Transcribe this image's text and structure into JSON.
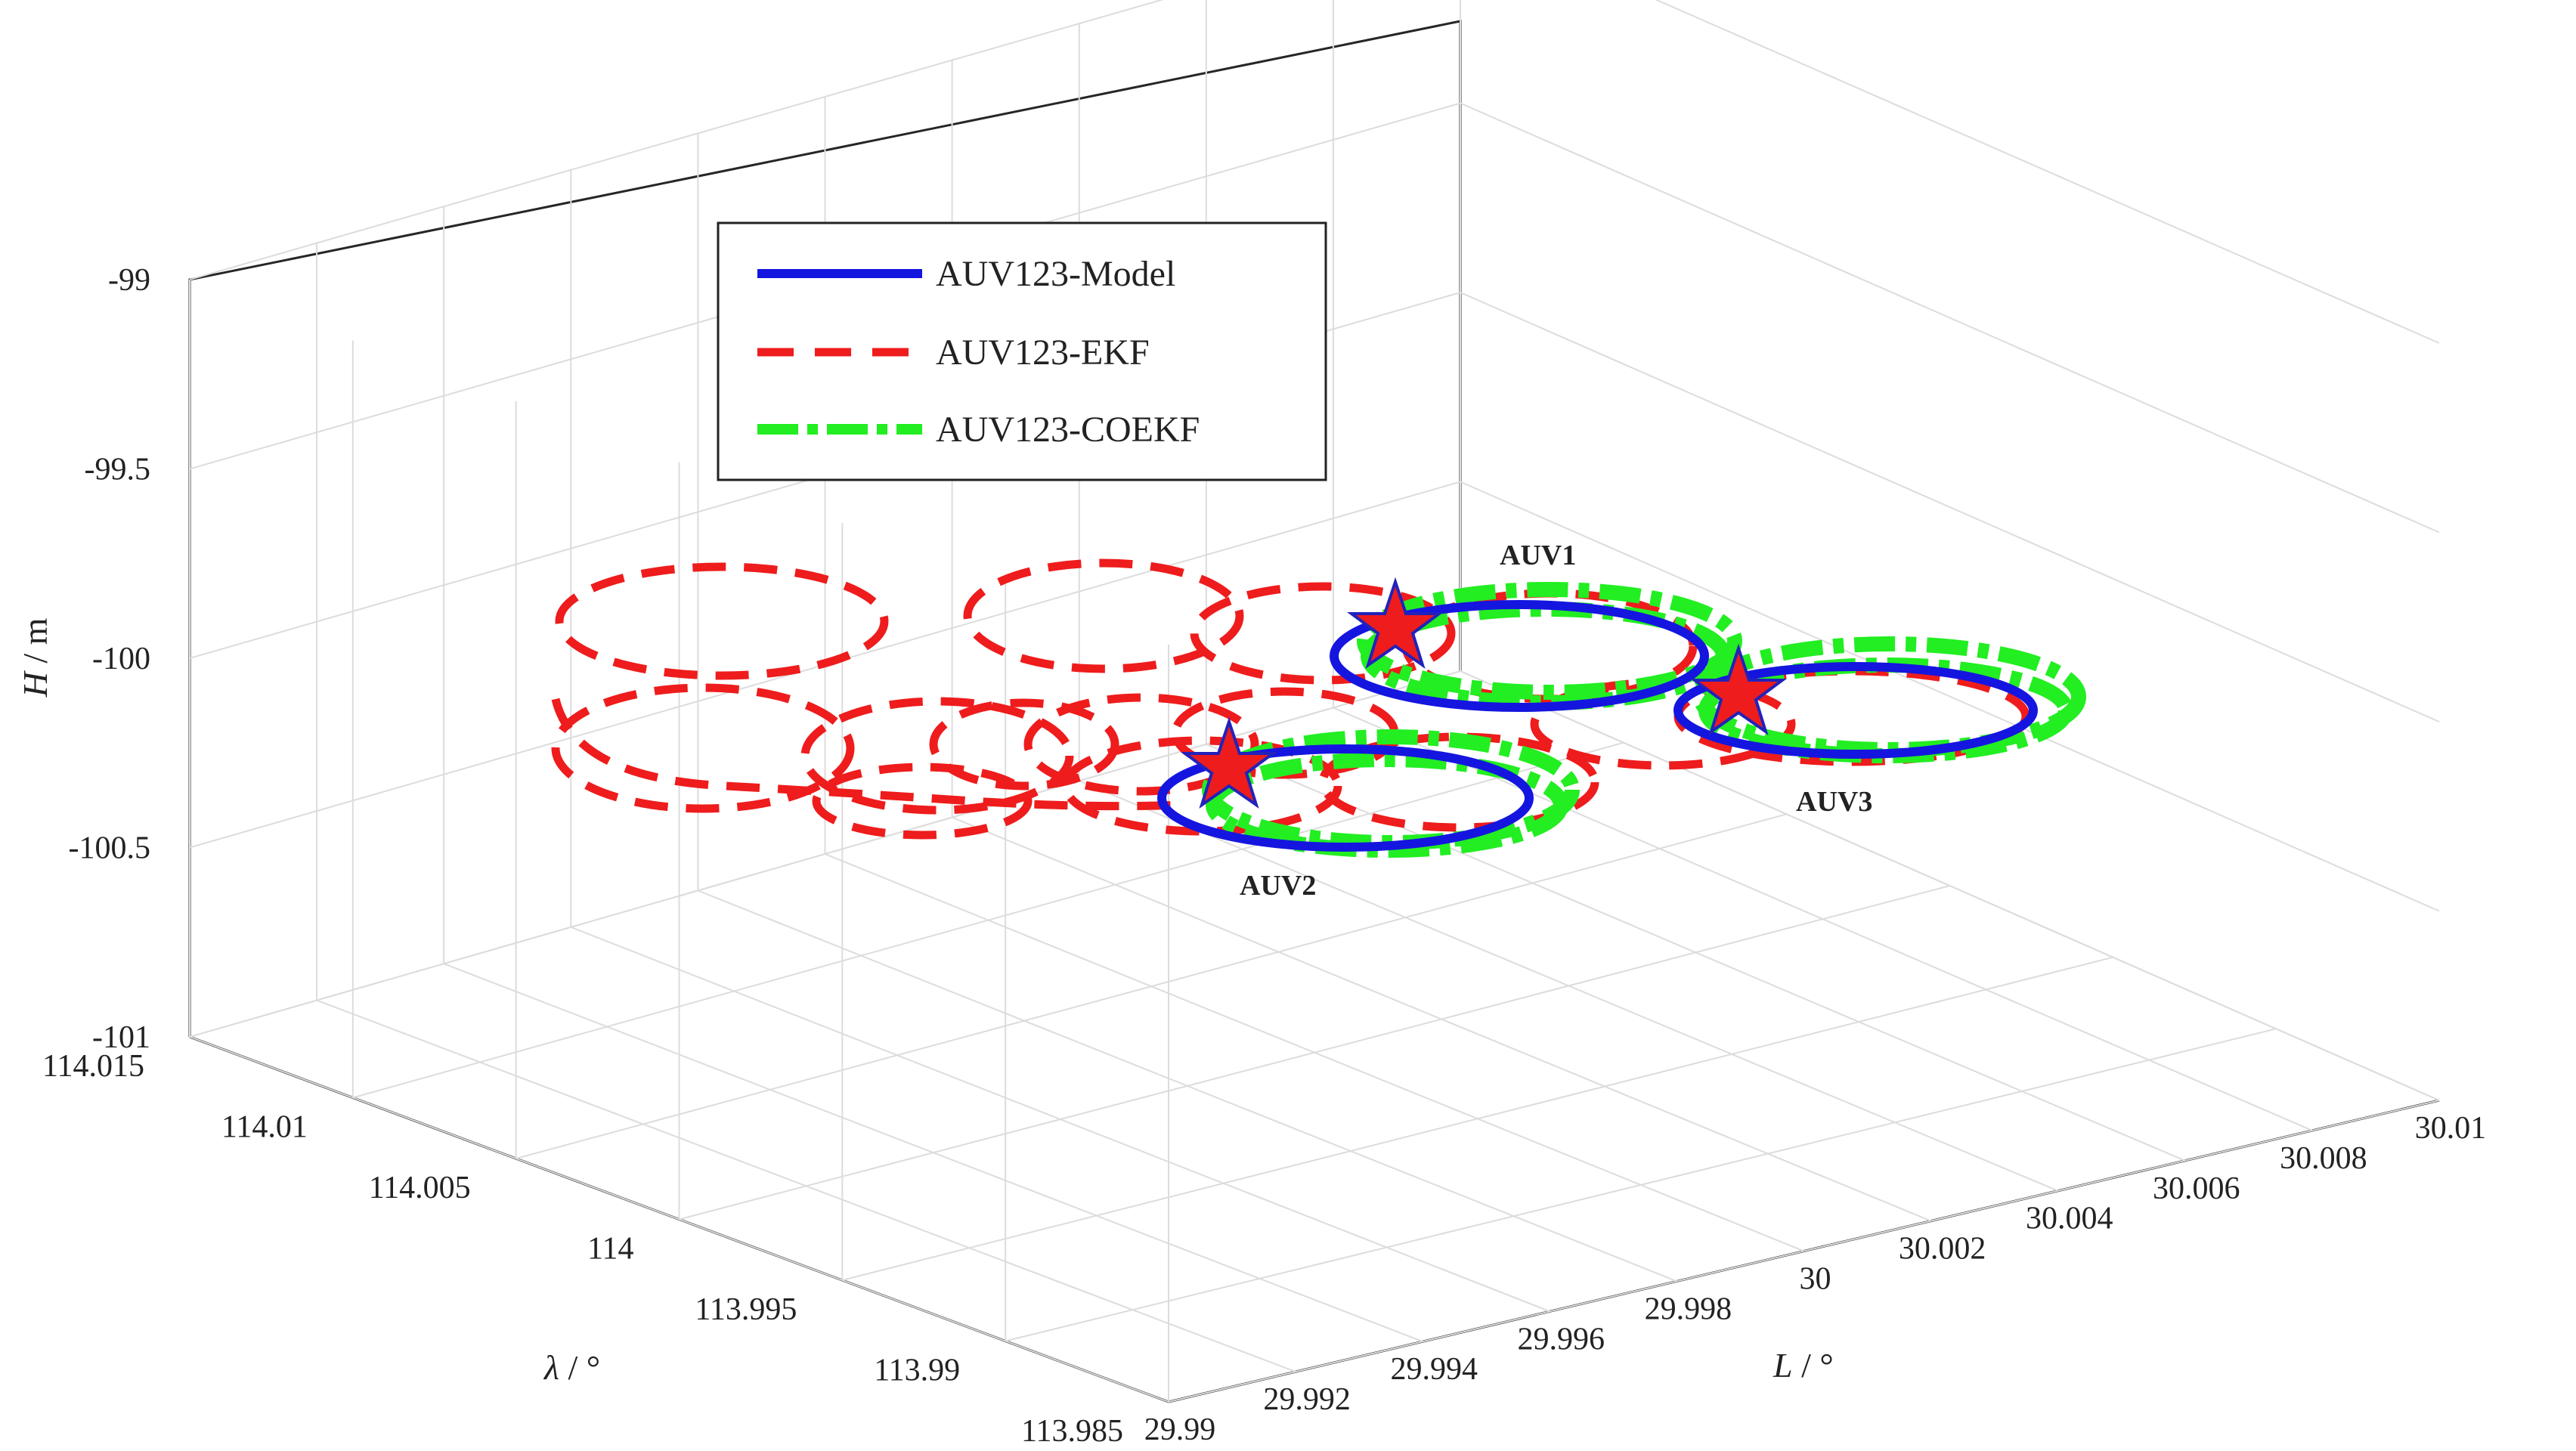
{
  "chart_data": {
    "type": "line3d",
    "zlabel": {
      "sym": "H",
      "unit": "/ m"
    },
    "xlabel": {
      "sym": "L",
      "unit": "/ °"
    },
    "ylabel": {
      "sym": "λ",
      "unit": "/ °"
    },
    "xlim": [
      29.99,
      30.01
    ],
    "ylim": [
      113.985,
      114.015
    ],
    "zlim": [
      -101,
      -99
    ],
    "z_ticks": [
      "-99",
      "-99.5",
      "-100",
      "-100.5",
      "-101"
    ],
    "x_ticks": [
      "29.99",
      "29.992",
      "29.994",
      "29.996",
      "29.998",
      "30",
      "30.002",
      "30.004",
      "30.006",
      "30.008",
      "30.01"
    ],
    "y_ticks": [
      "114.015",
      "114.01",
      "114.005",
      "114",
      "113.995",
      "113.99",
      "113.985"
    ],
    "grid": true,
    "legend": {
      "position": "top-left",
      "items": [
        {
          "label": "AUV123-Model",
          "color": "#1515e0",
          "dash": "solid"
        },
        {
          "label": "AUV123-EKF",
          "color": "#ee1c1c",
          "dash": "dashed"
        },
        {
          "label": "AUV123-COEKF",
          "color": "#22ee22",
          "dash": "dash-dot"
        }
      ]
    },
    "series": [
      {
        "name": "AUV123-Model",
        "values": "three circular trajectories at H = -100 m (AUV1, AUV2, AUV3)"
      },
      {
        "name": "AUV123-EKF",
        "values": "drifting looping estimates trailing toward decreasing L around H = -100 m"
      },
      {
        "name": "AUV123-COEKF",
        "values": "estimates closely following the model circles"
      }
    ],
    "annotations": [
      {
        "label": "AUV1",
        "L": 30.001,
        "lambda": 114.004,
        "H": -100
      },
      {
        "label": "AUV2",
        "L": 29.996,
        "lambda": 114.0,
        "H": -100
      },
      {
        "label": "AUV3",
        "L": 30.004,
        "lambda": 113.998,
        "H": -100
      }
    ],
    "start_marker": "red star at the start point of each AUV"
  }
}
